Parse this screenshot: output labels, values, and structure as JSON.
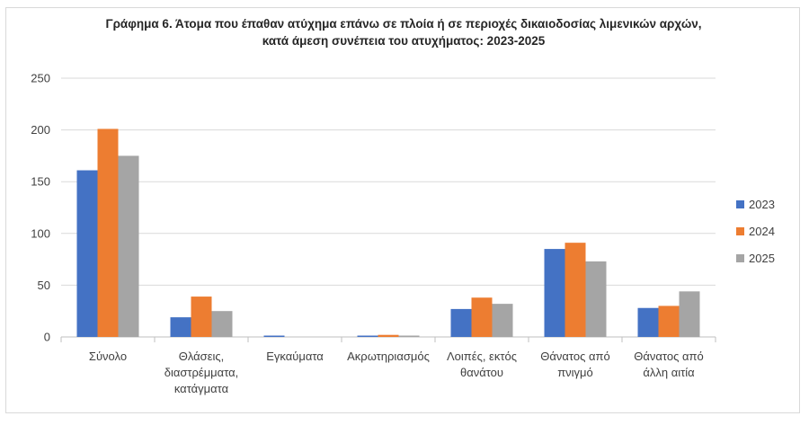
{
  "chart_data": {
    "type": "bar",
    "title_lines": [
      "Γράφημα 6. Άτομα που έπαθαν ατύχημα επάνω σε πλοία ή σε περιοχές δικαιοδοσίας λιμενικών αρχών,",
      "κατά άμεση συνέπεια του ατυχήματος: 2023-2025"
    ],
    "categories": [
      [
        "Σύνολο"
      ],
      [
        "Θλάσεις,",
        "διαστρέμματα,",
        "κατάγματα"
      ],
      [
        "Εγκαύματα"
      ],
      [
        "Ακρωτηριασμός"
      ],
      [
        "Λοιπές, εκτός",
        "θανάτου"
      ],
      [
        "Θάνατος από",
        "πνιγμό"
      ],
      [
        "Θάνατος από",
        "άλλη αιτία"
      ]
    ],
    "series": [
      {
        "name": "2023",
        "color": "#4472c4",
        "values": [
          161,
          19,
          1,
          1,
          27,
          85,
          28
        ]
      },
      {
        "name": "2024",
        "color": "#ed7d31",
        "values": [
          201,
          39,
          0,
          2,
          38,
          91,
          30
        ]
      },
      {
        "name": "2025",
        "color": "#a5a5a5",
        "values": [
          175,
          25,
          0,
          1,
          32,
          73,
          44
        ]
      }
    ],
    "yticks": [
      "0",
      "50",
      "100",
      "150",
      "200",
      "250"
    ],
    "ylim": [
      0,
      250
    ],
    "grid": true,
    "legend": "right"
  }
}
